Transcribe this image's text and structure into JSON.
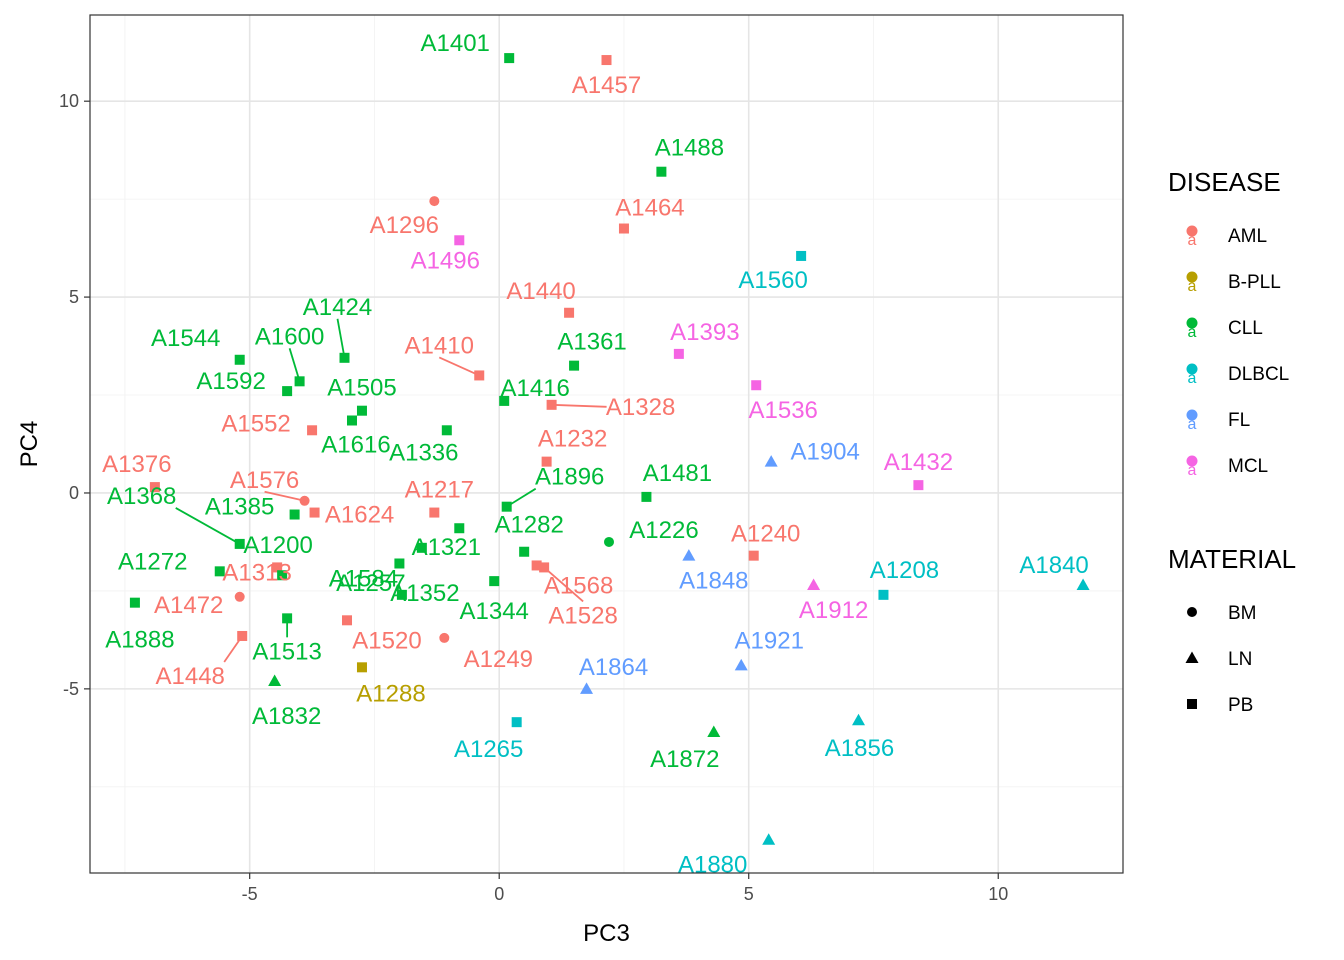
{
  "chart_data": {
    "type": "scatter",
    "xlabel": "PC3",
    "ylabel": "PC4",
    "xlim": [
      -8.2,
      12.5
    ],
    "ylim": [
      -9.7,
      12.2
    ],
    "xticks": [
      -5,
      0,
      5,
      10
    ],
    "yticks": [
      -5,
      0,
      5,
      10
    ],
    "grid": true,
    "legend_position": "right",
    "colors": {
      "AML": "#F8766D",
      "B-PLL": "#B79F00",
      "CLL": "#00BA38",
      "DLBCL": "#00BFC4",
      "FL": "#619CFF",
      "MCL": "#F564E3"
    },
    "legends": [
      {
        "title": "DISEASE",
        "kind": "color",
        "items": [
          "AML",
          "B-PLL",
          "CLL",
          "DLBCL",
          "FL",
          "MCL"
        ]
      },
      {
        "title": "MATERIAL",
        "kind": "shape",
        "items": [
          "BM",
          "LN",
          "PB"
        ]
      }
    ],
    "points": [
      {
        "label": "A1401",
        "x": 0.2,
        "y": 11.1,
        "disease": "CLL",
        "material": "PB"
      },
      {
        "label": "A1457",
        "x": 2.15,
        "y": 11.05,
        "disease": "AML",
        "material": "PB"
      },
      {
        "label": "A1488",
        "x": 3.25,
        "y": 8.2,
        "disease": "CLL",
        "material": "PB"
      },
      {
        "label": "A1296",
        "x": -1.3,
        "y": 7.45,
        "disease": "AML",
        "material": "BM"
      },
      {
        "label": "A1464",
        "x": 2.5,
        "y": 6.75,
        "disease": "AML",
        "material": "PB"
      },
      {
        "label": "A1496",
        "x": -0.8,
        "y": 6.45,
        "disease": "MCL",
        "material": "PB"
      },
      {
        "label": "A1560",
        "x": 6.05,
        "y": 6.05,
        "disease": "DLBCL",
        "material": "PB"
      },
      {
        "label": "A1440",
        "x": 1.4,
        "y": 4.6,
        "disease": "AML",
        "material": "PB"
      },
      {
        "label": "A1424",
        "x": -3.1,
        "y": 3.45,
        "disease": "CLL",
        "material": "PB"
      },
      {
        "label": "A1544",
        "x": -5.2,
        "y": 3.4,
        "disease": "CLL",
        "material": "PB"
      },
      {
        "label": "A1361",
        "x": 1.5,
        "y": 3.25,
        "disease": "CLL",
        "material": "PB"
      },
      {
        "label": "A1393",
        "x": 3.6,
        "y": 3.55,
        "disease": "MCL",
        "material": "PB"
      },
      {
        "label": "A1410",
        "x": -0.4,
        "y": 3.0,
        "disease": "AML",
        "material": "PB"
      },
      {
        "label": "A1600",
        "x": -4.0,
        "y": 2.85,
        "disease": "CLL",
        "material": "PB"
      },
      {
        "label": "A1592",
        "x": -4.25,
        "y": 2.6,
        "disease": "CLL",
        "material": "PB"
      },
      {
        "label": "A1536",
        "x": 5.15,
        "y": 2.75,
        "disease": "MCL",
        "material": "PB"
      },
      {
        "label": "A1416",
        "x": 0.1,
        "y": 2.35,
        "disease": "CLL",
        "material": "PB"
      },
      {
        "label": "A1328",
        "x": 1.05,
        "y": 2.25,
        "disease": "AML",
        "material": "PB"
      },
      {
        "label": "A1505",
        "x": -2.75,
        "y": 2.1,
        "disease": "CLL",
        "material": "PB"
      },
      {
        "label": "A1616",
        "x": -2.95,
        "y": 1.85,
        "disease": "CLL",
        "material": "PB"
      },
      {
        "label": "A1552",
        "x": -3.75,
        "y": 1.6,
        "disease": "AML",
        "material": "PB"
      },
      {
        "label": "A1336",
        "x": -1.05,
        "y": 1.6,
        "disease": "CLL",
        "material": "PB"
      },
      {
        "label": "A1232",
        "x": 0.95,
        "y": 0.8,
        "disease": "AML",
        "material": "PB"
      },
      {
        "label": "A1904",
        "x": 5.45,
        "y": 0.8,
        "disease": "FL",
        "material": "LN"
      },
      {
        "label": "A1376",
        "x": -6.9,
        "y": 0.15,
        "disease": "AML",
        "material": "PB"
      },
      {
        "label": "A1432",
        "x": 8.4,
        "y": 0.2,
        "disease": "MCL",
        "material": "PB"
      },
      {
        "label": "A1576",
        "x": -3.9,
        "y": -0.2,
        "disease": "AML",
        "material": "BM"
      },
      {
        "label": "A1481",
        "x": 2.95,
        "y": -0.1,
        "disease": "CLL",
        "material": "PB"
      },
      {
        "label": "A1624",
        "x": -3.7,
        "y": -0.5,
        "disease": "AML",
        "material": "PB"
      },
      {
        "label": "A1217",
        "x": -1.3,
        "y": -0.5,
        "disease": "AML",
        "material": "PB"
      },
      {
        "label": "A1896",
        "x": 0.15,
        "y": -0.35,
        "disease": "CLL",
        "material": "PB"
      },
      {
        "label": "A1385",
        "x": -4.1,
        "y": -0.55,
        "disease": "CLL",
        "material": "PB"
      },
      {
        "label": "A1368",
        "x": -5.2,
        "y": -1.3,
        "disease": "CLL",
        "material": "PB"
      },
      {
        "label": "A1321",
        "x": -0.8,
        "y": -0.9,
        "disease": "CLL",
        "material": "PB"
      },
      {
        "label": "A1257",
        "x": -1.55,
        "y": -1.4,
        "disease": "CLL",
        "material": "PB"
      },
      {
        "label": "A1282",
        "x": 0.5,
        "y": -1.5,
        "disease": "CLL",
        "material": "PB"
      },
      {
        "label": "A1226",
        "x": 2.2,
        "y": -1.25,
        "disease": "CLL",
        "material": "BM"
      },
      {
        "label": "A1240",
        "x": 5.1,
        "y": -1.6,
        "disease": "AML",
        "material": "PB"
      },
      {
        "label": "A1848",
        "x": 3.8,
        "y": -1.6,
        "disease": "FL",
        "material": "LN"
      },
      {
        "label": "A1568",
        "x": 0.75,
        "y": -1.85,
        "disease": "AML",
        "material": "PB"
      },
      {
        "label": "A1272",
        "x": -5.6,
        "y": -2.0,
        "disease": "CLL",
        "material": "PB"
      },
      {
        "label": "A1313",
        "x": -4.45,
        "y": -1.9,
        "disease": "AML",
        "material": "PB"
      },
      {
        "label": "A1584",
        "x": -2.0,
        "y": -1.8,
        "disease": "CLL",
        "material": "PB"
      },
      {
        "label": "A1888",
        "x": -7.3,
        "y": -2.8,
        "disease": "CLL",
        "material": "PB"
      },
      {
        "label": "A1472",
        "x": -5.2,
        "y": -2.65,
        "disease": "AML",
        "material": "BM"
      },
      {
        "label": "A1200",
        "x": -4.35,
        "y": -2.1,
        "disease": "CLL",
        "material": "PB"
      },
      {
        "label": "A1344",
        "x": -0.1,
        "y": -2.25,
        "disease": "CLL",
        "material": "PB"
      },
      {
        "label": "A1352",
        "x": -1.95,
        "y": -2.6,
        "disease": "CLL",
        "material": "PB"
      },
      {
        "label": "A1528",
        "x": 0.9,
        "y": -1.9,
        "disease": "AML",
        "material": "PB"
      },
      {
        "label": "A1208",
        "x": 7.7,
        "y": -2.6,
        "disease": "DLBCL",
        "material": "PB"
      },
      {
        "label": "A1912",
        "x": 6.3,
        "y": -2.35,
        "disease": "MCL",
        "material": "LN"
      },
      {
        "label": "A1840",
        "x": 11.7,
        "y": -2.35,
        "disease": "DLBCL",
        "material": "LN"
      },
      {
        "label": "A1520",
        "x": -3.05,
        "y": -3.25,
        "disease": "AML",
        "material": "PB"
      },
      {
        "label": "A1513",
        "x": -4.25,
        "y": -3.2,
        "disease": "CLL",
        "material": "PB"
      },
      {
        "label": "A1448",
        "x": -5.15,
        "y": -3.65,
        "disease": "AML",
        "material": "PB"
      },
      {
        "label": "A1249",
        "x": -1.1,
        "y": -3.7,
        "disease": "AML",
        "material": "BM"
      },
      {
        "label": "A1288",
        "x": -2.75,
        "y": -4.45,
        "disease": "B-PLL",
        "material": "PB"
      },
      {
        "label": "A1921",
        "x": 4.85,
        "y": -4.4,
        "disease": "FL",
        "material": "LN"
      },
      {
        "label": "A1864",
        "x": 1.75,
        "y": -5.0,
        "disease": "FL",
        "material": "LN"
      },
      {
        "label": "A1832",
        "x": -4.5,
        "y": -4.8,
        "disease": "CLL",
        "material": "LN"
      },
      {
        "label": "A1265",
        "x": 0.35,
        "y": -5.85,
        "disease": "DLBCL",
        "material": "PB"
      },
      {
        "label": "A1856",
        "x": 7.2,
        "y": -5.8,
        "disease": "DLBCL",
        "material": "LN"
      },
      {
        "label": "A1872",
        "x": 4.3,
        "y": -6.1,
        "disease": "CLL",
        "material": "LN"
      },
      {
        "label": "A1880",
        "x": 5.4,
        "y": -8.85,
        "disease": "DLBCL",
        "material": "LN"
      }
    ]
  }
}
